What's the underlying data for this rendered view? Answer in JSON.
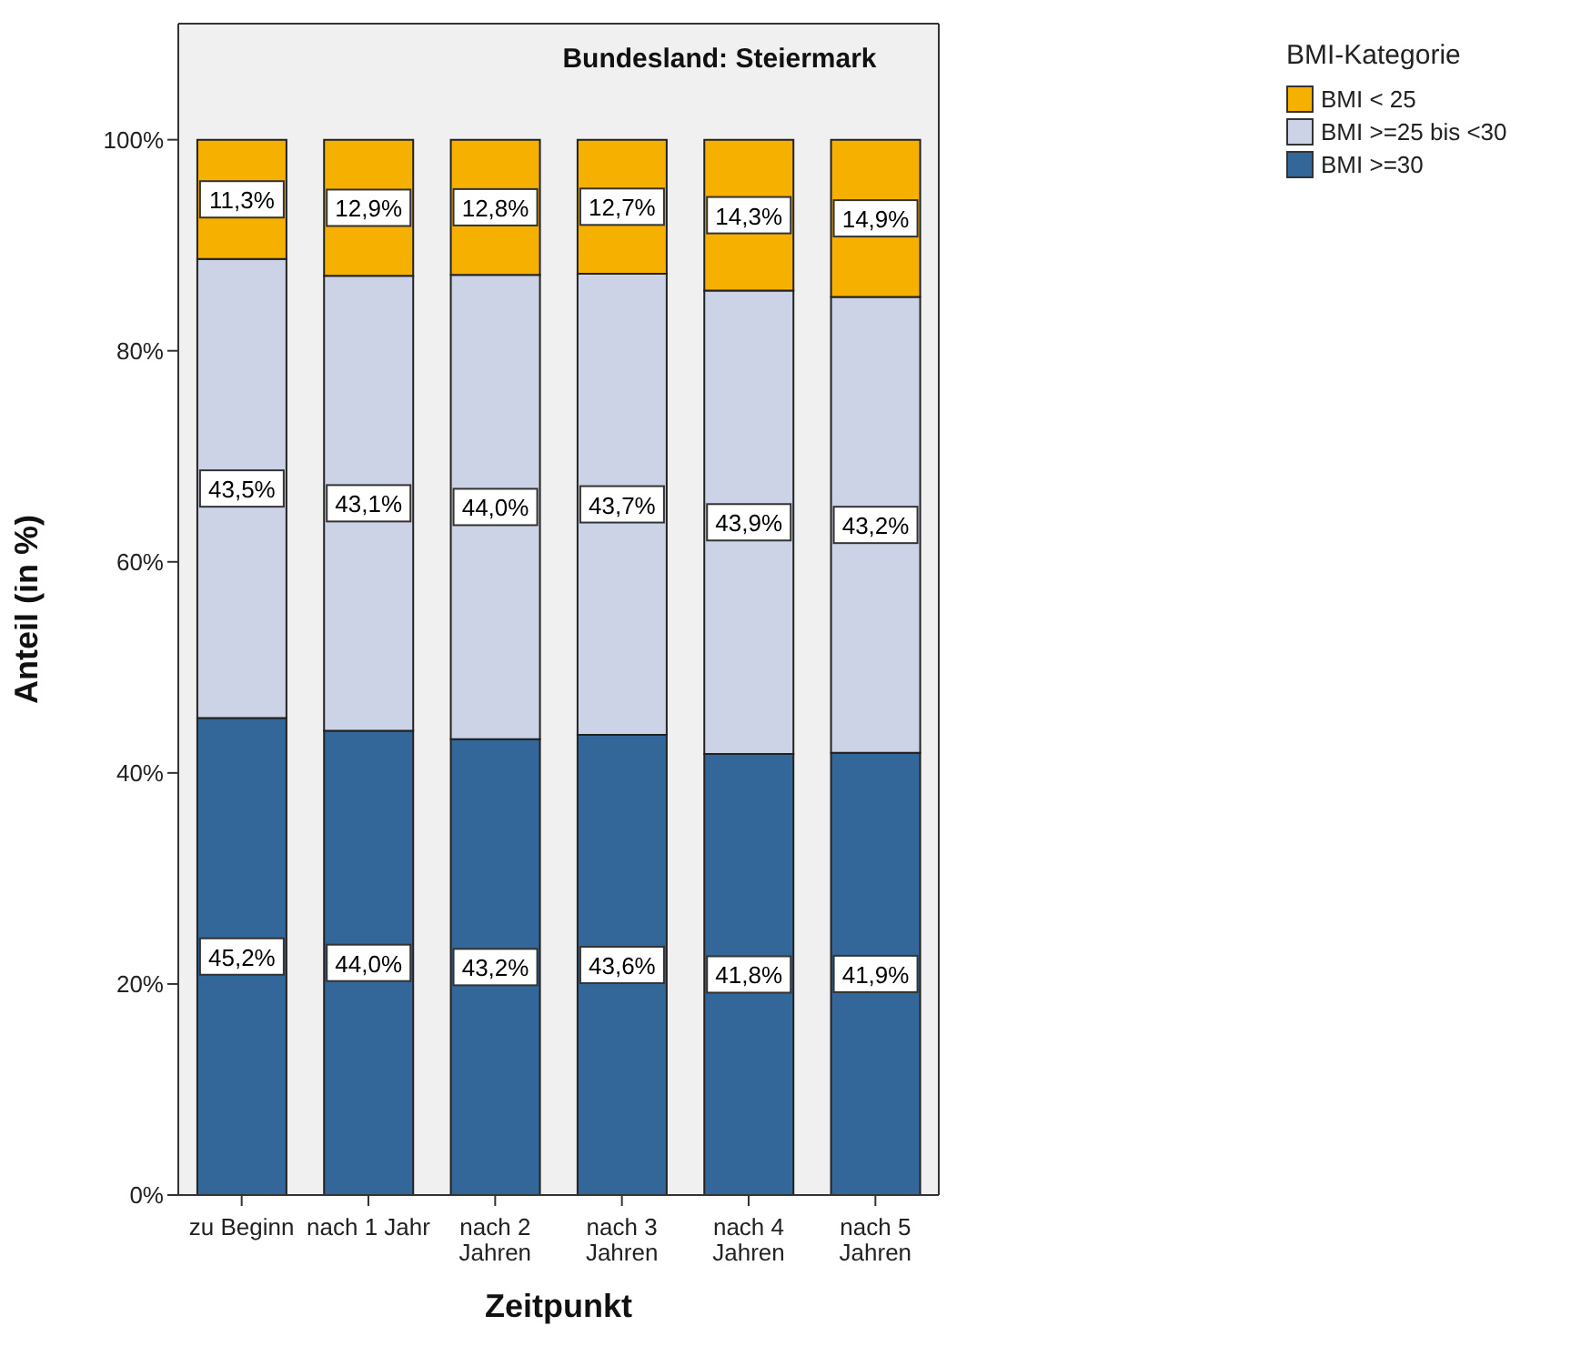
{
  "chart_data": {
    "type": "bar",
    "title": "Bundesland: Steiermark",
    "xlabel": "Zeitpunkt",
    "ylabel": "Anteil (in %)",
    "legend_title": "BMI-Kategorie",
    "categories": [
      "zu Beginn",
      "nach 1 Jahr",
      "nach 2 Jahren",
      "nach 3 Jahren",
      "nach 4 Jahren",
      "nach 5 Jahren"
    ],
    "stacked": true,
    "series": [
      {
        "name": "BMI >=30",
        "color": "#336699",
        "values": [
          45.2,
          44.0,
          43.2,
          43.6,
          41.8,
          41.9
        ],
        "value_labels": [
          "45,2%",
          "44,0%",
          "43,2%",
          "43,6%",
          "41,8%",
          "41,9%"
        ]
      },
      {
        "name": "BMI >=25 bis <30",
        "color": "#cdd3e6",
        "values": [
          43.5,
          43.1,
          44.0,
          43.7,
          43.9,
          43.2
        ],
        "value_labels": [
          "43,5%",
          "43,1%",
          "44,0%",
          "43,7%",
          "43,9%",
          "43,2%"
        ]
      },
      {
        "name": "BMI < 25",
        "color": "#f5b000",
        "values": [
          11.3,
          12.9,
          12.8,
          12.7,
          14.3,
          14.9
        ],
        "value_labels": [
          "11,3%",
          "12,9%",
          "12,8%",
          "12,7%",
          "14,3%",
          "14,9%"
        ]
      }
    ],
    "ylim": [
      0,
      111
    ],
    "yticks": [
      {
        "value": 0,
        "label": "0%"
      },
      {
        "value": 20,
        "label": "20%"
      },
      {
        "value": 40,
        "label": "40%"
      },
      {
        "value": 60,
        "label": "60%"
      },
      {
        "value": 80,
        "label": "80%"
      },
      {
        "value": 100,
        "label": "100%"
      }
    ],
    "legend": "top right"
  }
}
